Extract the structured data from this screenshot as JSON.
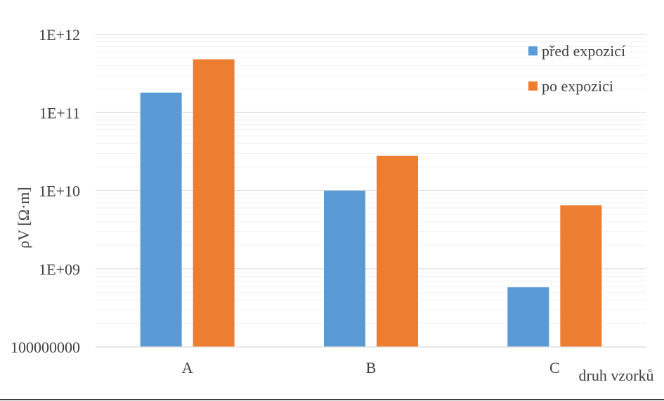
{
  "chart_data": {
    "type": "bar",
    "scale": "log",
    "title": "",
    "xlabel": "druh vzorků",
    "ylabel": "ρV [Ω·m]",
    "categories": [
      "A",
      "B",
      "C"
    ],
    "ylim": [
      100000000,
      1000000000000
    ],
    "y_ticks": [
      100000000,
      1000000000,
      10000000000,
      100000000000,
      1000000000000
    ],
    "y_tick_labels": [
      "100000000",
      "1E+09",
      "1E+10",
      "1E+11",
      "1E+12"
    ],
    "grid": true,
    "minor_grid": true,
    "legend_position": "top-right",
    "series": [
      {
        "name": "před expozicí",
        "color": "#5B9BD5",
        "values": [
          180000000000,
          10000000000,
          580000000
        ]
      },
      {
        "name": "po expozici",
        "color": "#ED7D31",
        "values": [
          480000000000,
          28000000000,
          6500000000
        ]
      }
    ]
  }
}
